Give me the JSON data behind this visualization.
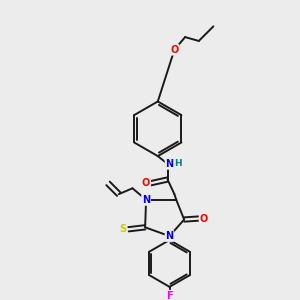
{
  "bg_color": "#ececec",
  "bond_color": "#1a1a1a",
  "atom_colors": {
    "O": "#ff0000",
    "N": "#0000ee",
    "S": "#cccc00",
    "F": "#ee00ee",
    "H": "#008080",
    "C": "#1a1a1a"
  },
  "figsize": [
    3.0,
    3.0
  ],
  "dpi": 100
}
